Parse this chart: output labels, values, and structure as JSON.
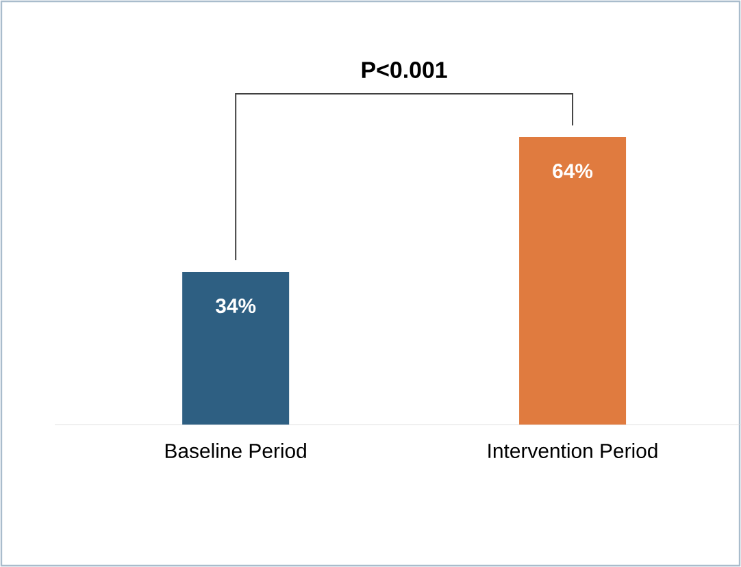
{
  "chart_data": {
    "type": "bar",
    "categories": [
      "Baseline Period",
      "Intervention Period"
    ],
    "colors": [
      "#2e5f82",
      "#e07b3f"
    ],
    "values": [
      34,
      64
    ],
    "value_labels": [
      "34%",
      "64%"
    ],
    "annotations": [
      "P<0.001"
    ]
  }
}
